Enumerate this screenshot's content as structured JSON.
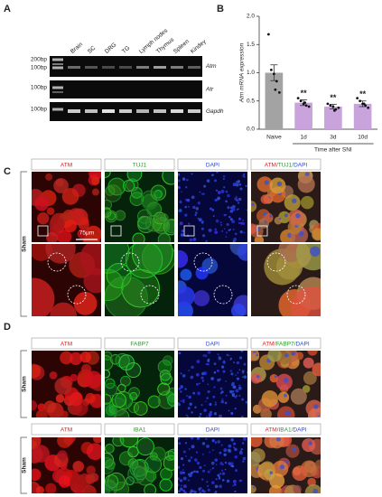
{
  "panel_a": {
    "label": "A",
    "lanes": [
      "Brain",
      "SC",
      "DRG",
      "TG",
      "Lymph nodes",
      "Thymus",
      "Spleen",
      "Kindey"
    ],
    "gels": [
      {
        "gene": "Atm",
        "markers": [
          "200bp",
          "100bp"
        ]
      },
      {
        "gene": "Atr",
        "markers": [
          "100bp"
        ]
      },
      {
        "gene": "Gapdh",
        "markers": [
          "100bp"
        ]
      }
    ]
  },
  "chart_data": {
    "type": "bar",
    "panel_label": "B",
    "ylabel": "Atm mRNA expression",
    "xlabel": "Time after SNI",
    "categories": [
      "Naive",
      "1d",
      "3d",
      "10d"
    ],
    "values": [
      1.0,
      0.47,
      0.4,
      0.45
    ],
    "errors": [
      0.14,
      0.05,
      0.04,
      0.05
    ],
    "colors": [
      "#a3a3a3",
      "#c9a3dc",
      "#c9a3dc",
      "#c9a3dc"
    ],
    "significance": [
      null,
      "**",
      "**",
      "**"
    ],
    "points": [
      [
        1.68,
        1.05,
        0.98,
        0.85,
        0.65,
        0.7
      ],
      [
        0.55,
        0.5,
        0.45,
        0.42,
        0.4,
        0.47
      ],
      [
        0.45,
        0.42,
        0.4,
        0.35,
        0.38,
        0.33
      ],
      [
        0.55,
        0.5,
        0.45,
        0.42,
        0.38,
        0.45
      ]
    ],
    "ylim": [
      0,
      2
    ],
    "yticks": [
      {
        "value": 0,
        "label": "0.0"
      },
      0.5,
      {
        "value": 1,
        "label": "1.0"
      },
      1.5,
      {
        "value": 2,
        "label": "2.0"
      }
    ]
  },
  "panel_c": {
    "label": "C",
    "headers": [
      [
        {
          "text": "ATM",
          "color": "#d02828"
        }
      ],
      [
        {
          "text": "TUJ1",
          "color": "#2a9a2a"
        }
      ],
      [
        {
          "text": "DAPI",
          "color": "#3048d0"
        }
      ],
      [
        {
          "text": "ATM/",
          "color": "#d02828"
        },
        {
          "text": "TUJ1/",
          "color": "#2a9a2a"
        },
        {
          "text": "DAPI",
          "color": "#3048d0"
        }
      ]
    ],
    "row_label": "Sham",
    "scale_bar": "75μm"
  },
  "panel_d": {
    "label": "D",
    "blocks": [
      {
        "headers": [
          [
            {
              "text": "ATM",
              "color": "#d02828"
            }
          ],
          [
            {
              "text": "FABP7",
              "color": "#2a9a2a"
            }
          ],
          [
            {
              "text": "DAPI",
              "color": "#3048d0"
            }
          ],
          [
            {
              "text": "ATM/",
              "color": "#d02828"
            },
            {
              "text": "FABP7/",
              "color": "#2a9a2a"
            },
            {
              "text": "DAPI",
              "color": "#3048d0"
            }
          ]
        ],
        "row_label": "Sham"
      },
      {
        "headers": [
          [
            {
              "text": "ATM",
              "color": "#d02828"
            }
          ],
          [
            {
              "text": "IBA1",
              "color": "#2a9a2a"
            }
          ],
          [
            {
              "text": "DAPI",
              "color": "#3048d0"
            }
          ],
          [
            {
              "text": "ATM/",
              "color": "#d02828"
            },
            {
              "text": "IBA1/",
              "color": "#2a9a2a"
            },
            {
              "text": "DAPI",
              "color": "#3048d0"
            }
          ]
        ],
        "row_label": "Sham"
      }
    ]
  }
}
